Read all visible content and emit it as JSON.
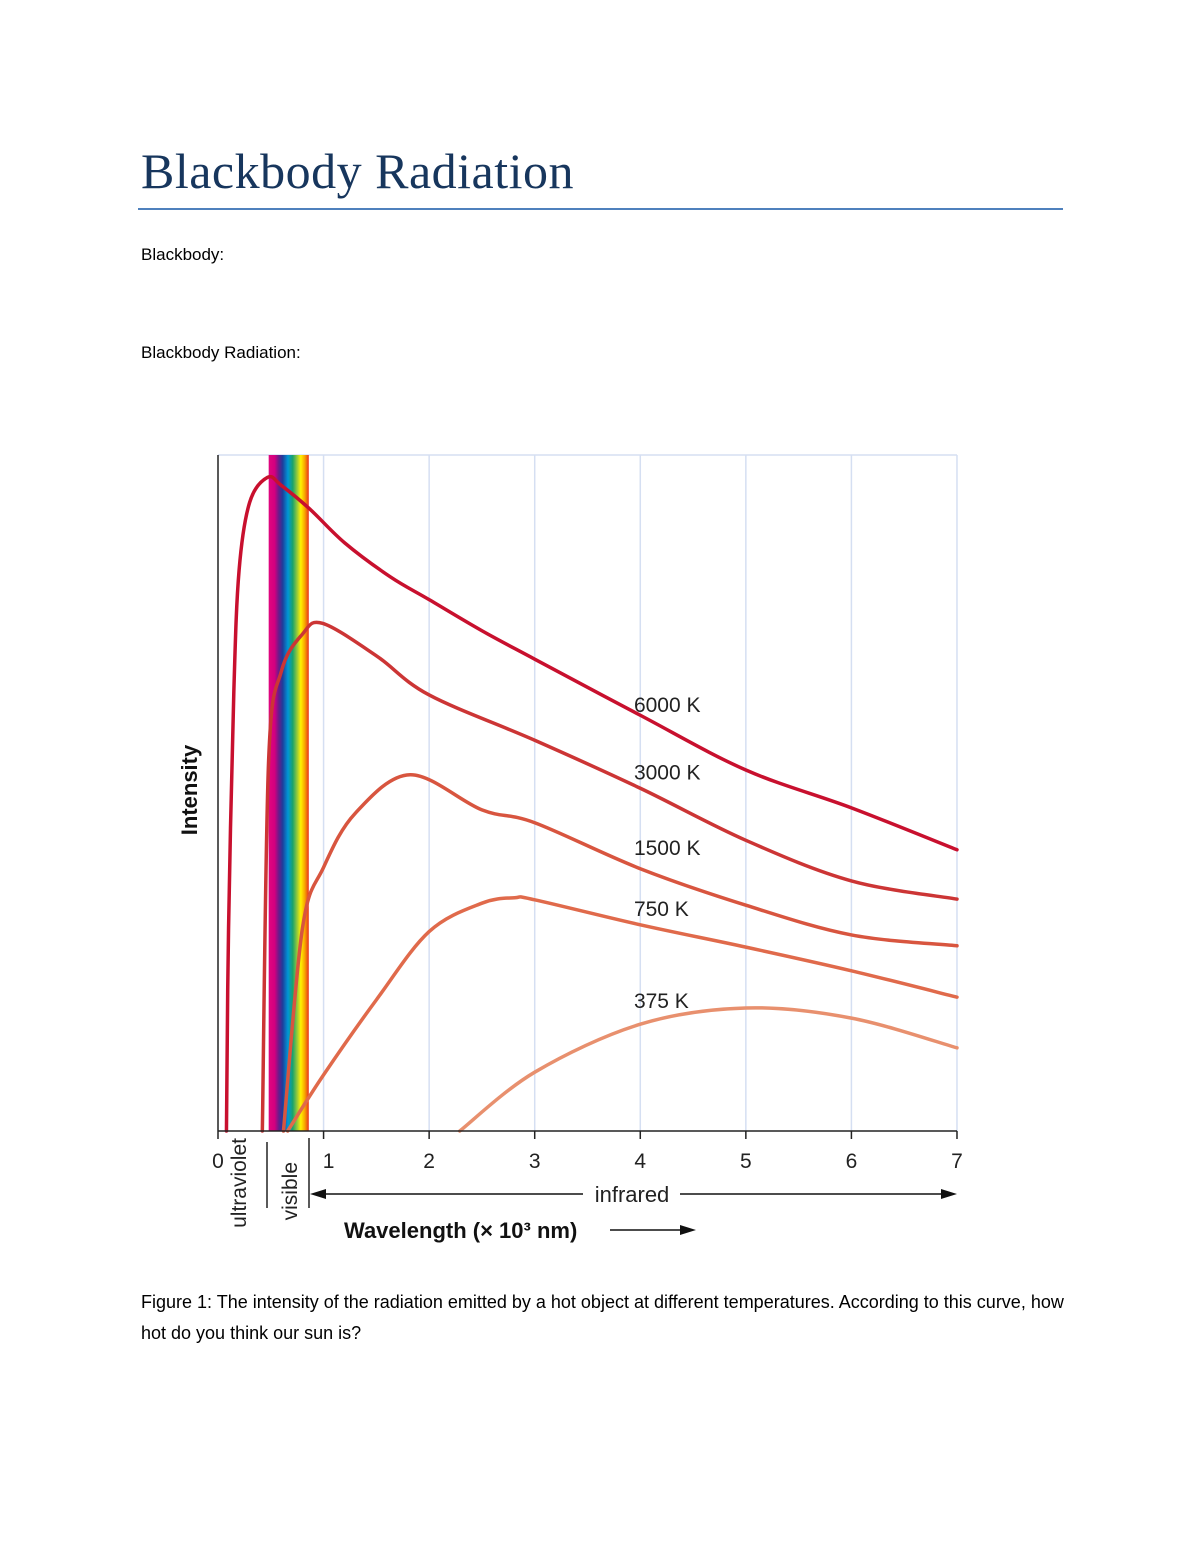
{
  "document": {
    "title": "Blackbody Radiation",
    "field1": "Blackbody:",
    "field2": "Blackbody Radiation:",
    "caption": "Figure 1:  The intensity of the radiation emitted by a hot object at different temperatures.   According to this curve, how hot do you think our sun is?"
  },
  "chart_data": {
    "type": "line",
    "xlabel": "Wavelength (× 10³ nm)",
    "ylabel": "Intensity",
    "xlim": [
      0,
      7
    ],
    "x_ticks": [
      "0",
      "1",
      "2",
      "3",
      "4",
      "5",
      "6",
      "7"
    ],
    "y_ticks": [],
    "grid": "vertical",
    "regions": {
      "ultraviolet": "ultraviolet",
      "visible": "visible",
      "infrared": "infrared"
    },
    "visible_band": [
      0.48,
      0.86
    ],
    "series": [
      {
        "name": "6000 K",
        "color": "#c8102e",
        "points": [
          [
            0.08,
            0
          ],
          [
            0.1,
            30
          ],
          [
            0.15,
            65
          ],
          [
            0.2,
            83
          ],
          [
            0.3,
            93
          ],
          [
            0.47,
            96.7
          ],
          [
            0.6,
            95.5
          ],
          [
            0.87,
            92
          ],
          [
            1.2,
            87
          ],
          [
            1.63,
            82
          ],
          [
            2,
            78.6
          ],
          [
            2.5,
            74
          ],
          [
            3,
            69.8
          ],
          [
            4,
            61.5
          ],
          [
            5,
            53.4
          ],
          [
            6,
            47.8
          ],
          [
            7,
            41.6
          ]
        ]
      },
      {
        "name": "3000 K",
        "color": "#cc3535",
        "points": [
          [
            0.42,
            0
          ],
          [
            0.48,
            55
          ],
          [
            0.6,
            68
          ],
          [
            0.8,
            73.5
          ],
          [
            0.99,
            75.1
          ],
          [
            1.5,
            70.3
          ],
          [
            2,
            64.5
          ],
          [
            3,
            57.8
          ],
          [
            4,
            50.7
          ],
          [
            5,
            43
          ],
          [
            6,
            37
          ],
          [
            7,
            34.3
          ]
        ]
      },
      {
        "name": "1500 K",
        "color": "#d8553f",
        "points": [
          [
            0.62,
            0
          ],
          [
            0.8,
            30
          ],
          [
            1.0,
            39
          ],
          [
            1.3,
            47
          ],
          [
            1.82,
            52.7
          ],
          [
            2.5,
            47.5
          ],
          [
            3,
            45.6
          ],
          [
            4,
            38.8
          ],
          [
            5,
            33.4
          ],
          [
            6,
            29
          ],
          [
            7,
            27.4
          ]
        ]
      },
      {
        "name": "750 K",
        "color": "#e06a4b",
        "points": [
          [
            0.66,
            0
          ],
          [
            1,
            8.3
          ],
          [
            1.5,
            19.4
          ],
          [
            2,
            29.5
          ],
          [
            2.5,
            33.7
          ],
          [
            2.81,
            34.5
          ],
          [
            3,
            34.2
          ],
          [
            4,
            30.5
          ],
          [
            5,
            27.2
          ],
          [
            6,
            23.7
          ],
          [
            7,
            19.8
          ]
        ]
      },
      {
        "name": "375 K",
        "color": "#e8906e",
        "points": [
          [
            2.29,
            0
          ],
          [
            3,
            8.7
          ],
          [
            4,
            15.8
          ],
          [
            5,
            18.2
          ],
          [
            6,
            16.7
          ],
          [
            7,
            12.3
          ]
        ]
      }
    ]
  }
}
